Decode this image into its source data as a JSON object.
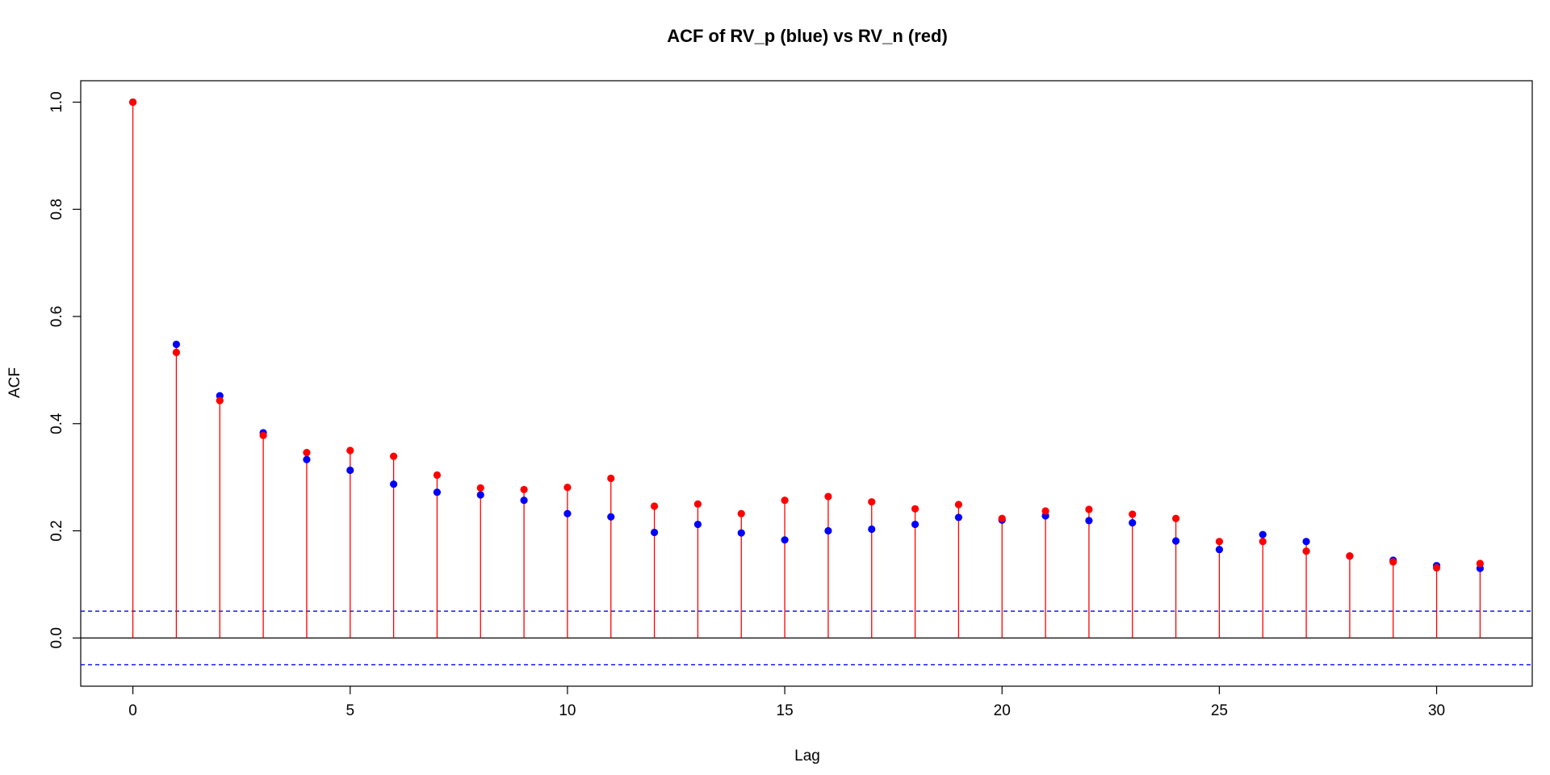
{
  "chart_data": {
    "type": "scatter",
    "title": "ACF of RV_p (blue) vs RV_n (red)",
    "xlabel": "Lag",
    "ylabel": "ACF",
    "xlim": [
      -1.2,
      32.2
    ],
    "ylim": [
      -0.09,
      1.04
    ],
    "x_ticks": [
      0,
      5,
      10,
      15,
      20,
      25,
      30
    ],
    "y_ticks": [
      0.0,
      0.2,
      0.4,
      0.6,
      0.8,
      1.0
    ],
    "y_tick_labels": [
      "0.0",
      "0.2",
      "0.4",
      "0.6",
      "0.8",
      "1.0"
    ],
    "confidence_bounds": [
      0.05,
      -0.05
    ],
    "zero_line": 0,
    "grid": false,
    "legend": "none",
    "lags": [
      0,
      1,
      2,
      3,
      4,
      5,
      6,
      7,
      8,
      9,
      10,
      11,
      12,
      13,
      14,
      15,
      16,
      17,
      18,
      19,
      20,
      21,
      22,
      23,
      24,
      25,
      26,
      27,
      28,
      29,
      30,
      31
    ],
    "series": [
      {
        "color": "#0000ff",
        "values": [
          1.0,
          0.548,
          0.452,
          0.383,
          0.333,
          0.313,
          0.287,
          0.272,
          0.267,
          0.257,
          0.232,
          0.226,
          0.197,
          0.212,
          0.196,
          0.183,
          0.2,
          0.203,
          0.212,
          0.225,
          0.22,
          0.228,
          0.219,
          0.215,
          0.181,
          0.165,
          0.193,
          0.18,
          0.153,
          0.145,
          0.135,
          0.13
        ]
      },
      {
        "color": "#ff0000",
        "values": [
          1.0,
          0.533,
          0.443,
          0.378,
          0.346,
          0.35,
          0.339,
          0.304,
          0.28,
          0.277,
          0.281,
          0.298,
          0.246,
          0.25,
          0.232,
          0.257,
          0.264,
          0.254,
          0.241,
          0.249,
          0.223,
          0.237,
          0.24,
          0.231,
          0.223,
          0.18,
          0.18,
          0.162,
          0.153,
          0.142,
          0.131,
          0.139
        ]
      }
    ],
    "stem_color": "#ff0000",
    "bound_color": "#0000ff"
  }
}
